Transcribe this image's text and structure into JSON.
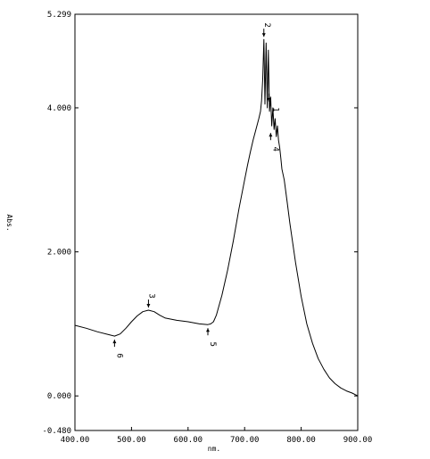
{
  "chart_data": {
    "type": "line",
    "title": "",
    "xlabel": "nm.",
    "ylabel": "Abs.",
    "xlim": [
      400,
      900
    ],
    "ylim": [
      -0.48,
      5.299
    ],
    "x_ticks": [
      400,
      500,
      600,
      700,
      800,
      900
    ],
    "x_tick_labels": [
      "400.00",
      "500.00",
      "600.00",
      "700.00",
      "800.00",
      "900.00"
    ],
    "y_ticks": [
      -0.48,
      0.0,
      2.0,
      4.0,
      5.299
    ],
    "y_tick_labels": [
      "-0.480",
      "0.000",
      "2.000",
      "4.000",
      "5.299"
    ],
    "grid": false,
    "series": [
      {
        "x": [
          400,
          420,
          440,
          460,
          470,
          480,
          490,
          500,
          510,
          520,
          530,
          540,
          550,
          560,
          580,
          600,
          620,
          635,
          640,
          645,
          650,
          660,
          670,
          680,
          690,
          700,
          705,
          710,
          715,
          720,
          725,
          728,
          730,
          732,
          734,
          736,
          738,
          740,
          742,
          744,
          746,
          748,
          750,
          752,
          754,
          756,
          758,
          760,
          762,
          764,
          766,
          770,
          775,
          780,
          790,
          800,
          810,
          820,
          830,
          840,
          850,
          860,
          870,
          880,
          890,
          900
        ],
        "y": [
          0.98,
          0.94,
          0.89,
          0.85,
          0.83,
          0.86,
          0.94,
          1.03,
          1.11,
          1.17,
          1.19,
          1.17,
          1.12,
          1.08,
          1.05,
          1.03,
          1.0,
          0.99,
          1.0,
          1.03,
          1.12,
          1.4,
          1.75,
          2.15,
          2.6,
          3.0,
          3.2,
          3.38,
          3.55,
          3.7,
          3.85,
          3.95,
          4.1,
          4.4,
          4.95,
          4.05,
          4.9,
          4.0,
          4.8,
          3.95,
          4.15,
          3.75,
          4.0,
          3.7,
          3.85,
          3.6,
          3.75,
          3.55,
          3.45,
          3.3,
          3.15,
          3.0,
          2.7,
          2.4,
          1.85,
          1.38,
          1.0,
          0.73,
          0.52,
          0.37,
          0.25,
          0.17,
          0.11,
          0.07,
          0.04,
          0.0
        ]
      }
    ],
    "annotations": [
      {
        "text": "1",
        "x": 743,
        "y": 4.05
      },
      {
        "text": "2",
        "x": 734,
        "y": 4.95
      },
      {
        "text": "3",
        "x": 530,
        "y": 1.19
      },
      {
        "text": "4",
        "x": 746,
        "y": 3.7
      },
      {
        "text": "5",
        "x": 635,
        "y": 0.99
      },
      {
        "text": "6",
        "x": 470,
        "y": 0.83
      }
    ]
  }
}
